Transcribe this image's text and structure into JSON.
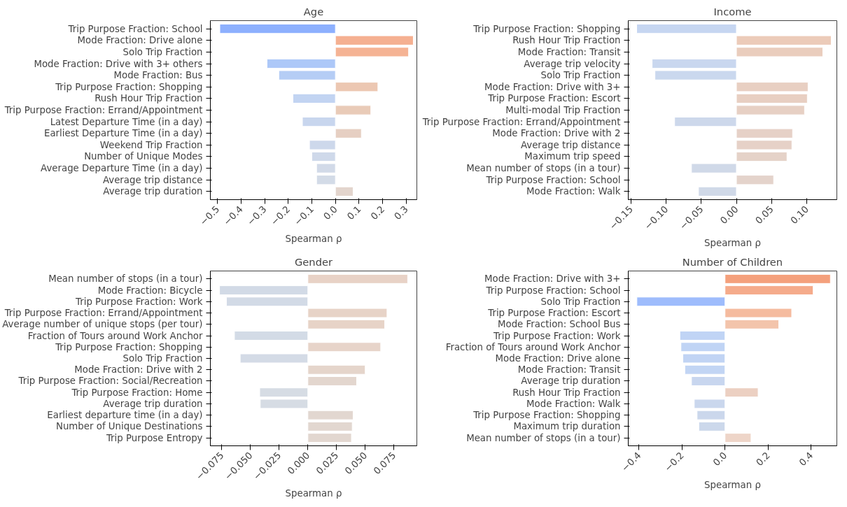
{
  "chart_data": [
    {
      "type": "bar",
      "orientation": "horizontal",
      "title": "Age",
      "xlabel": "Spearman ρ",
      "categories": [
        "Trip Purpose Fraction: School",
        "Mode Fraction: Drive alone",
        "Solo Trip Fraction",
        "Mode Fraction: Drive with 3+ others",
        "Mode Fraction: Bus",
        "Trip Purpose Fraction: Shopping",
        "Rush Hour Trip Fraction",
        "Trip Purpose Fraction: Errand/Appointment",
        "Latest Departure Time (in a day)",
        "Earliest Departure Time (in a day)",
        "Weekend Trip Fraction",
        "Number of Unique Modes",
        "Average Departure Time (in a day)",
        "Average trip distance",
        "Average trip duration"
      ],
      "values": [
        -0.49,
        0.33,
        0.31,
        -0.29,
        -0.24,
        0.18,
        -0.18,
        0.15,
        -0.14,
        0.11,
        -0.11,
        -0.1,
        -0.08,
        -0.08,
        0.075
      ],
      "colors": [
        "#8db0fe",
        "#f5b091",
        "#f5b394",
        "#adc8f8",
        "#b5cdf5",
        "#ecc7b2",
        "#c2d4f2",
        "#e9cbb8",
        "#c8d6ee",
        "#e6cfc2",
        "#cdd8eb",
        "#cfd9ea",
        "#d2dae8",
        "#d3dbe7",
        "#e3d5cd"
      ],
      "xlim": [
        -0.53,
        0.345
      ],
      "xticks": [
        {
          "value": -0.5,
          "label": "−0.5"
        },
        {
          "value": -0.4,
          "label": "−0.4"
        },
        {
          "value": -0.3,
          "label": "−0.3"
        },
        {
          "value": -0.2,
          "label": "−0.2"
        },
        {
          "value": -0.1,
          "label": "−0.1"
        },
        {
          "value": 0,
          "label": "0.0"
        },
        {
          "value": 0.1,
          "label": "0.1"
        },
        {
          "value": 0.2,
          "label": "0.2"
        },
        {
          "value": 0.3,
          "label": "0.3"
        }
      ]
    },
    {
      "type": "bar",
      "orientation": "horizontal",
      "title": "Income",
      "xlabel": "Spearman ρ",
      "categories": [
        "Trip Purpose Fraction: Shopping",
        "Rush Hour Trip Fraction",
        "Mode Fraction: Transit",
        "Average trip velocity",
        "Solo Trip Fraction",
        "Mode Fraction: Drive with 3+",
        "Trip Purpose Fraction: Escort",
        "Multi-modal Trip Fraction",
        "Trip Purpose Fraction: Errand/Appointment",
        "Mode Fraction: Drive with 2",
        "Average trip distance",
        "Maximum trip speed",
        "Mean number of stops (in a tour)",
        "Trip Purpose Fraction: School",
        "Mode Fraction: Walk"
      ],
      "values": [
        -0.142,
        0.135,
        0.123,
        -0.12,
        -0.116,
        0.102,
        0.101,
        0.097,
        -0.088,
        0.08,
        0.079,
        0.072,
        -0.064,
        0.053,
        -0.054
      ],
      "colors": [
        "#c6d6f1",
        "#eccbb9",
        "#eacdbd",
        "#c9d7ef",
        "#cad8ee",
        "#e8cfc2",
        "#e8cfc2",
        "#e7d0c4",
        "#cdd8eb",
        "#e6d1c7",
        "#e6d1c7",
        "#e5d2c8",
        "#d0d9e8",
        "#e4d3cb",
        "#d0d9e8"
      ],
      "xlim": [
        -0.154,
        0.143
      ],
      "xticks": [
        {
          "value": -0.15,
          "label": "−0.15"
        },
        {
          "value": -0.1,
          "label": "−0.10"
        },
        {
          "value": -0.05,
          "label": "−0.05"
        },
        {
          "value": 0,
          "label": "0.00"
        },
        {
          "value": 0.05,
          "label": "0.05"
        },
        {
          "value": 0.1,
          "label": "0.10"
        }
      ]
    },
    {
      "type": "bar",
      "orientation": "horizontal",
      "title": "Gender",
      "xlabel": "Spearman ρ",
      "categories": [
        "Mean number of stops (in a tour)",
        "Mode Fraction: Bicycle",
        "Trip Purpose Fraction: Work",
        "Trip Purpose Fraction: Errand/Appointment",
        "Average number of unique stops (per tour)",
        "Fraction of Tours around Work Anchor",
        "Trip Purpose Fraction: Shopping",
        "Solo Trip Fraction",
        "Mode Fraction: Drive with 2",
        "Trip Purpose Fraction: Social/Recreation",
        "Trip Purpose Fraction: Home",
        "Average trip duration",
        "Earliest departure time (in a day)",
        "Number of Unique Destinations",
        "Trip Purpose Entropy"
      ],
      "values": [
        0.087,
        -0.077,
        -0.071,
        0.069,
        0.067,
        -0.064,
        0.0635,
        -0.059,
        0.05,
        0.0425,
        -0.042,
        -0.0415,
        0.0395,
        0.0387,
        0.038
      ],
      "colors": [
        "#e8d2c6",
        "#d2dae6",
        "#d2dae6",
        "#e7d3c7",
        "#e7d3c7",
        "#d3dbe6",
        "#e7d4c9",
        "#d4dbe6",
        "#e5d5cb",
        "#e3d6ce",
        "#d6dce4",
        "#d6dce4",
        "#e2d7d0",
        "#e2d7d0",
        "#e2d7d0"
      ],
      "xlim": [
        -0.085,
        0.095
      ],
      "xticks": [
        {
          "value": -0.075,
          "label": "−0.075"
        },
        {
          "value": -0.05,
          "label": "−0.050"
        },
        {
          "value": -0.025,
          "label": "−0.025"
        },
        {
          "value": 0,
          "label": "0.000"
        },
        {
          "value": 0.025,
          "label": "0.025"
        },
        {
          "value": 0.05,
          "label": "0.050"
        },
        {
          "value": 0.075,
          "label": "0.075"
        }
      ]
    },
    {
      "type": "bar",
      "orientation": "horizontal",
      "title": "Number of Children",
      "xlabel": "Spearman ρ",
      "categories": [
        "Mode Fraction: Drive with 3+",
        "Trip Purpose Fraction: School",
        "Solo Trip Fraction",
        "Trip Purpose Fraction: Escort",
        "Mode Fraction: School Bus",
        "Trip Purpose Fraction: Work",
        "Fraction of Tours around Work Anchor",
        "Mode Fraction: Drive alone",
        "Mode Fraction: Transit",
        "Average trip duration",
        "Rush Hour Trip Fraction",
        "Mode Fraction: Walk",
        "Trip Purpose Fraction: Shopping",
        "Maximum trip duration",
        "Mean number of stops (in a tour)"
      ],
      "values": [
        0.49,
        0.41,
        -0.41,
        0.31,
        0.25,
        -0.21,
        -0.205,
        -0.196,
        -0.187,
        -0.156,
        0.154,
        -0.143,
        -0.13,
        -0.122,
        0.121
      ],
      "colors": [
        "#f4a07c",
        "#f5ab8b",
        "#9ebcfc",
        "#f5bb9f",
        "#f3c4ab",
        "#c0d4f5",
        "#c0d4f5",
        "#c1d4f4",
        "#c2d5f4",
        "#c8d6ef",
        "#ecd0c2",
        "#cad7ed",
        "#cbd7ec",
        "#ccd8eb",
        "#eed5c8"
      ],
      "xlim": [
        -0.45,
        0.52
      ],
      "xticks": [
        {
          "value": -0.4,
          "label": "−0.4"
        },
        {
          "value": -0.2,
          "label": "−0.2"
        },
        {
          "value": 0,
          "label": "0.0"
        },
        {
          "value": 0.2,
          "label": "0.2"
        },
        {
          "value": 0.4,
          "label": "0.4"
        }
      ]
    }
  ]
}
